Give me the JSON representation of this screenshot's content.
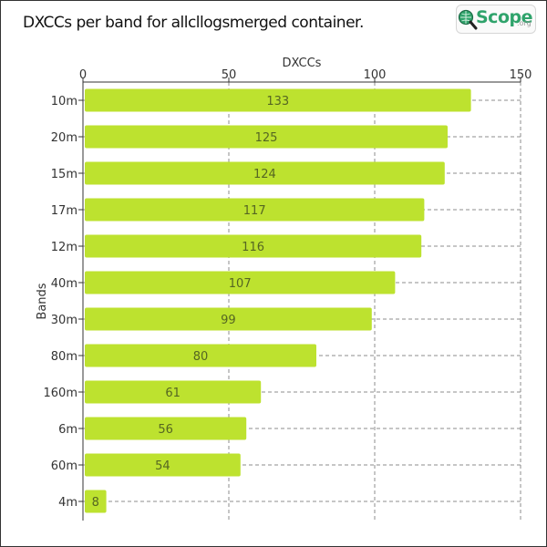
{
  "title": "DXCCs per band for allcllogsmerged container.",
  "logo": {
    "brand": "Scope",
    "tld": ".org",
    "icon": "magnifier-globe-icon",
    "color": "#2fa36b"
  },
  "chart_data": {
    "type": "bar",
    "orientation": "horizontal",
    "title": "DXCCs per band for allcllogsmerged container.",
    "xlabel": "DXCCs",
    "ylabel": "Bands",
    "categories": [
      "10m",
      "20m",
      "15m",
      "17m",
      "12m",
      "40m",
      "30m",
      "80m",
      "160m",
      "6m",
      "60m",
      "4m"
    ],
    "values": [
      133,
      125,
      124,
      117,
      116,
      107,
      99,
      80,
      61,
      56,
      54,
      8
    ],
    "xlim": [
      0,
      150
    ],
    "xticks": [
      0,
      50,
      100,
      150
    ],
    "x_axis_position": "top",
    "grid": "dashed",
    "bar_color": "#bde22f",
    "value_labels": true
  }
}
